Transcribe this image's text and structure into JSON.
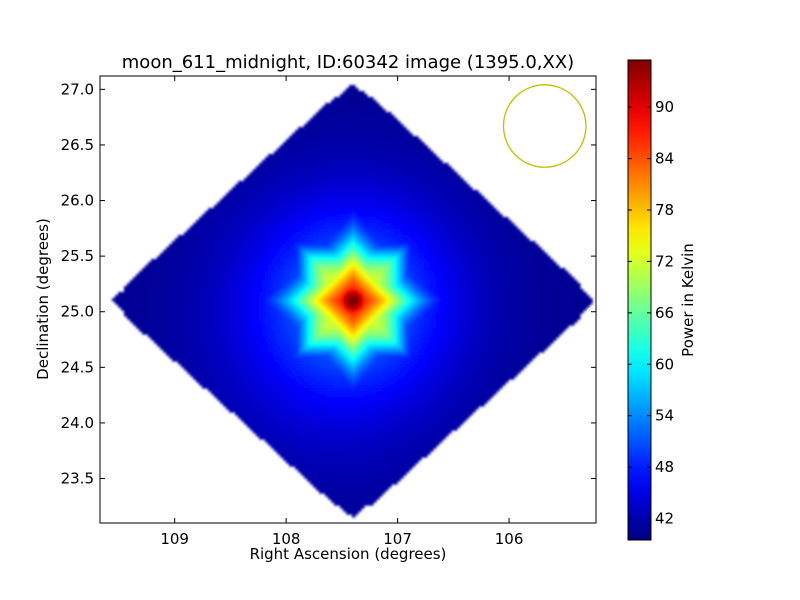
{
  "chart_data": {
    "type": "heatmap",
    "title": "moon_611_midnight, ID:60342 image (1395.0,XX)",
    "xlabel": "Right Ascension (degrees)",
    "ylabel": "Declination (degrees)",
    "colorbar_label": "Power in Kelvin",
    "colormap": "jet",
    "x_reversed": true,
    "xlim": [
      109.67,
      105.22
    ],
    "ylim": [
      23.1,
      27.12
    ],
    "x_ticks": [
      109,
      108,
      107,
      106
    ],
    "x_tick_labels": [
      "109",
      "108",
      "107",
      "106"
    ],
    "y_ticks": [
      23.5,
      24.0,
      24.5,
      25.0,
      25.5,
      26.0,
      26.5,
      27.0
    ],
    "y_tick_labels": [
      "23.5",
      "24.0",
      "24.5",
      "25.0",
      "25.5",
      "26.0",
      "26.5",
      "27.0"
    ],
    "colorbar_range": [
      39.5,
      95.5
    ],
    "colorbar_ticks": [
      42,
      48,
      54,
      60,
      66,
      72,
      78,
      84,
      90
    ],
    "colorbar_tick_labels": [
      "42",
      "48",
      "54",
      "60",
      "66",
      "72",
      "78",
      "84",
      "90"
    ],
    "footprint": {
      "shape": "diamond",
      "center_ra": 107.4,
      "center_dec": 25.1,
      "half_width_ra": 2.2,
      "half_height_dec": 1.98
    },
    "peak": {
      "ra": 107.4,
      "dec": 25.1,
      "value": 95
    },
    "background_value": 40.5,
    "circle_marker": {
      "ra": 105.68,
      "dec": 26.67,
      "radius_deg": 0.37,
      "color": "#bfbf00"
    }
  }
}
